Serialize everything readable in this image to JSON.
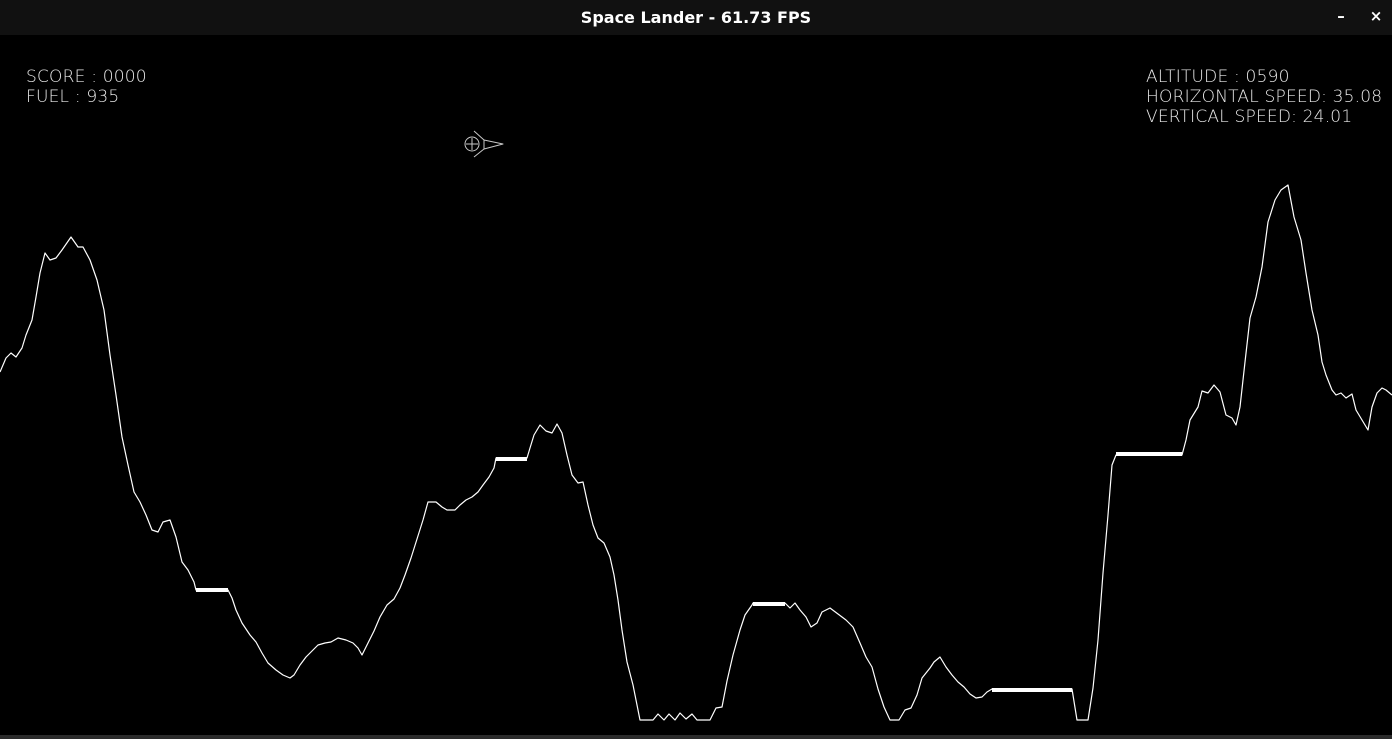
{
  "window": {
    "title": "Space Lander - 61.73 FPS",
    "minimize_label": "–",
    "close_label": "×"
  },
  "hud": {
    "score": "SCORE : 0000",
    "fuel": "FUEL : 935",
    "altitude": "ALTITUDE : 0590",
    "horizontal_speed": "HORIZONTAL SPEED: 35.08",
    "vertical_speed": "VERTICAL SPEED: 24.01"
  },
  "colors": {
    "background": "#000000",
    "terrain": "#ffffff",
    "lander": "#c8c8c8",
    "hud_text": "#e8e8e8",
    "titlebar": "#111111"
  },
  "icons": {
    "lander": "lander-ship-icon"
  }
}
